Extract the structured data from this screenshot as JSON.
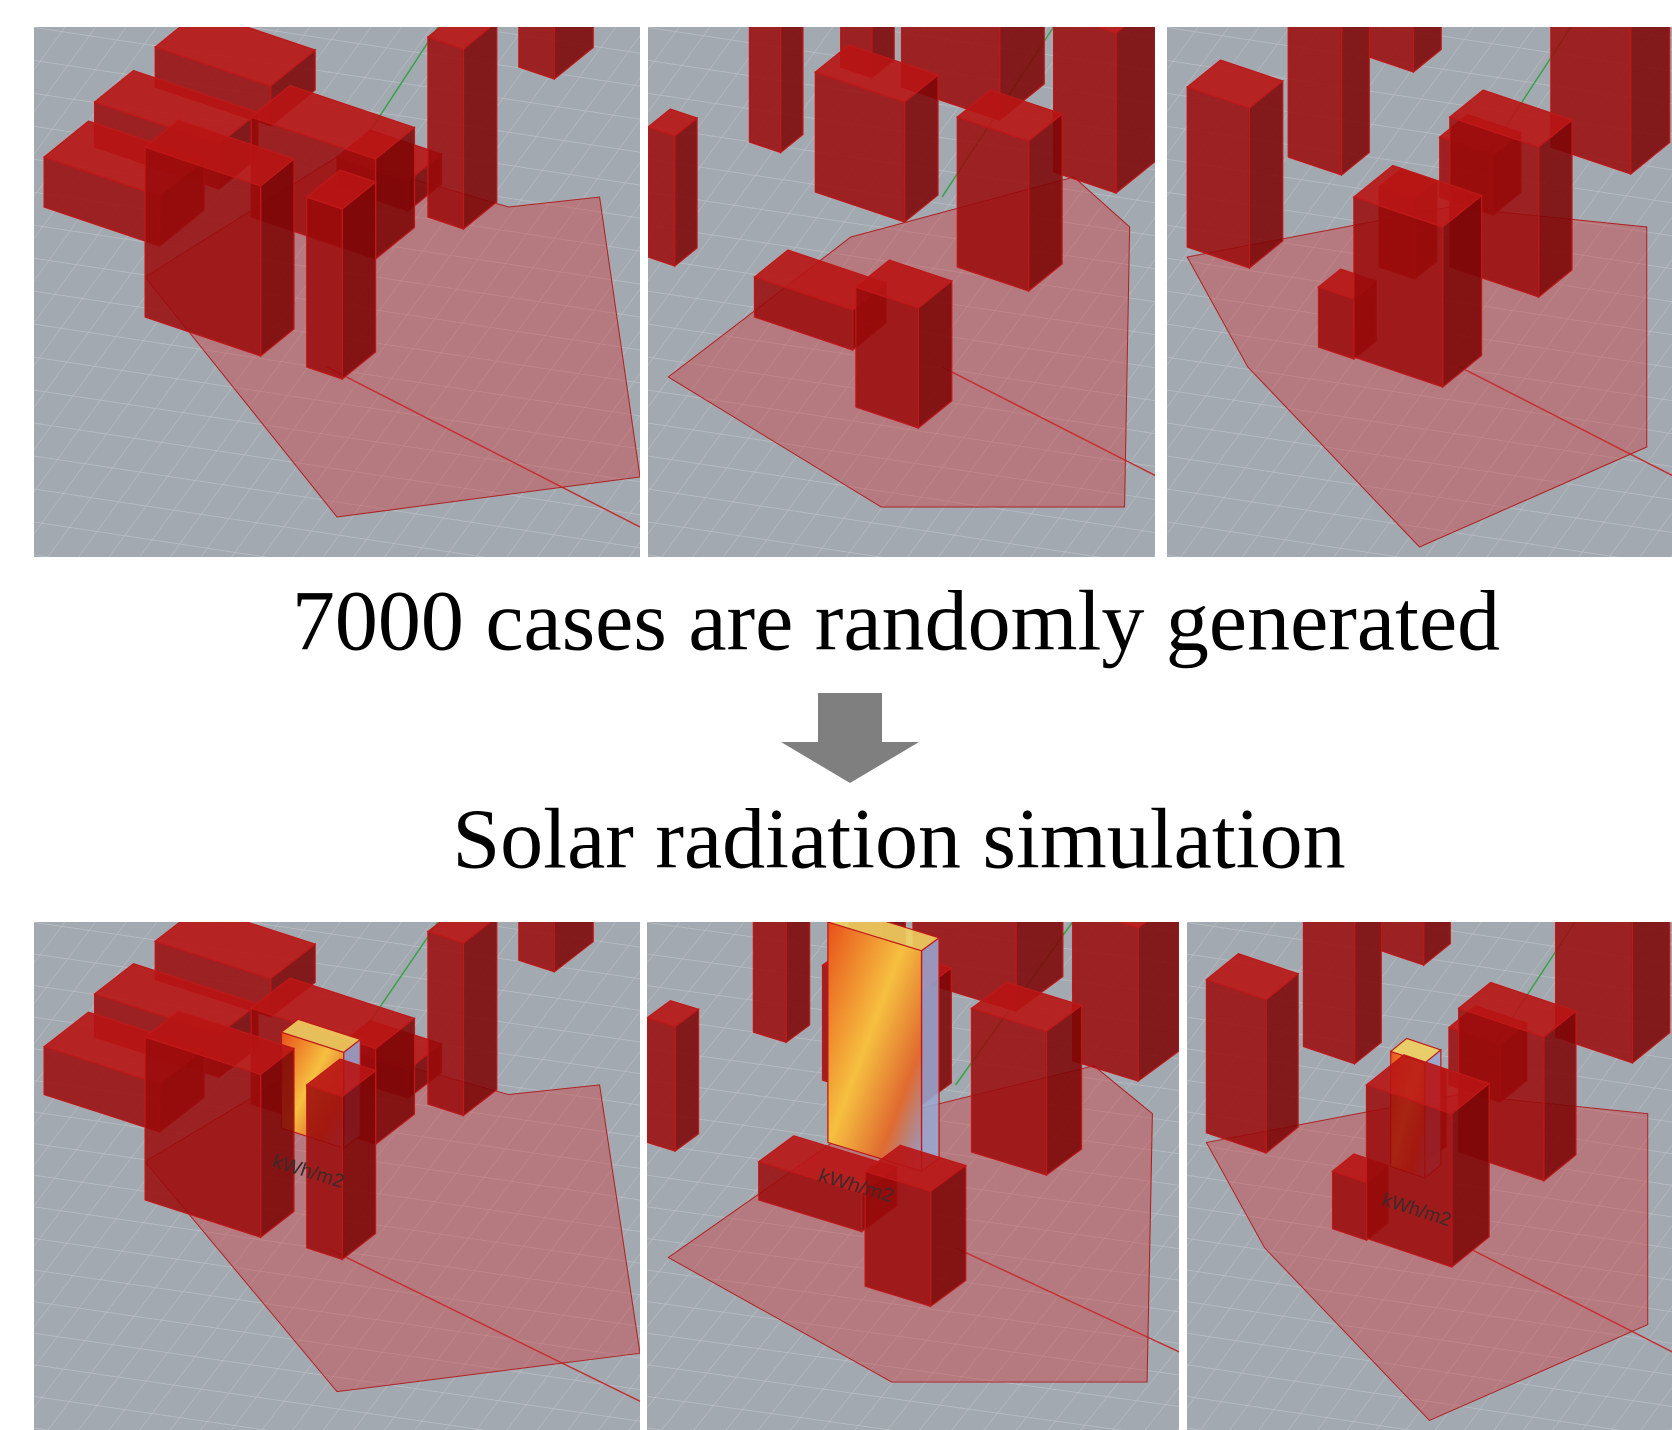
{
  "captions": {
    "top": "7000 cases are randomly generated",
    "bottom": "Solar radiation simulation"
  },
  "panel_labels": [
    "kWh/m2",
    "kWh/m2",
    "kWh/m2"
  ]
}
